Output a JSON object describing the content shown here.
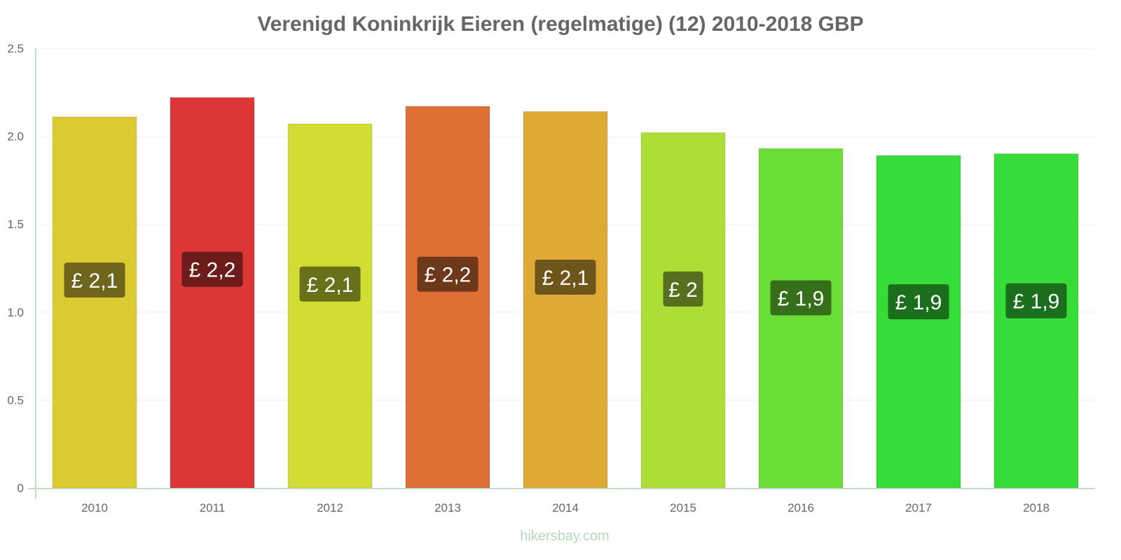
{
  "chart_data": {
    "type": "bar",
    "title": "Verenigd Koninkrijk Eieren (regelmatige) (12) 2010-2018 GBP",
    "xlabel": "",
    "ylabel": "",
    "ylim": [
      0,
      2.5
    ],
    "yticks": [
      "0",
      "0.5",
      "1.0",
      "1.5",
      "2.0",
      "2.5"
    ],
    "grid": true,
    "categories": [
      "2010",
      "2011",
      "2012",
      "2013",
      "2014",
      "2015",
      "2016",
      "2017",
      "2018"
    ],
    "values": [
      2.11,
      2.22,
      2.07,
      2.17,
      2.14,
      2.02,
      1.93,
      1.89,
      1.9
    ],
    "data_labels": [
      "£ 2,1",
      "£ 2,2",
      "£ 2,1",
      "£ 2,2",
      "£ 2,1",
      "£ 2",
      "£ 1,9",
      "£ 1,9",
      "£ 1,9"
    ],
    "bar_colors": [
      "#dccb33",
      "#dc3636",
      "#d1dd33",
      "#de7035",
      "#dea935",
      "#aedd35",
      "#6ade36",
      "#36dc38",
      "#36dc38"
    ],
    "label_colors": [
      "#6e661a",
      "#6e1b1b",
      "#69701a",
      "#6e381a",
      "#6e551a",
      "#577020",
      "#356f1a",
      "#1b6e1c",
      "#1b6e1c"
    ]
  },
  "watermark": "hikersbay.com"
}
